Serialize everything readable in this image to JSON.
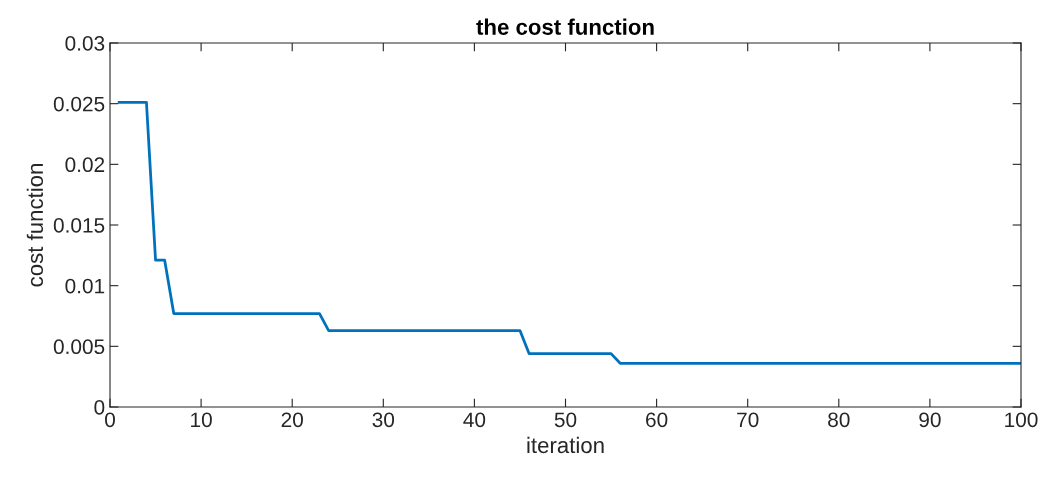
{
  "chart_data": {
    "type": "line",
    "title": "the cost function",
    "xlabel": "iteration",
    "ylabel": "cost function",
    "x": [
      1,
      4,
      5,
      6,
      7,
      23,
      24,
      45,
      46,
      55,
      56,
      100
    ],
    "series": [
      {
        "color": "#0072bd",
        "values": [
          0.0251,
          0.0251,
          0.0121,
          0.0121,
          0.0077,
          0.0077,
          0.0063,
          0.0063,
          0.0044,
          0.0044,
          0.0036,
          0.0036
        ]
      }
    ],
    "xlim": [
      0,
      100
    ],
    "xticks": [
      0,
      10,
      20,
      30,
      40,
      50,
      60,
      70,
      80,
      90,
      100
    ],
    "ylim": [
      0,
      0.03
    ],
    "yticks": [
      0,
      0.005,
      0.01,
      0.015,
      0.02,
      0.025,
      0.03
    ],
    "grid": false,
    "legend": false,
    "marker": "none",
    "line_style": "solid"
  }
}
